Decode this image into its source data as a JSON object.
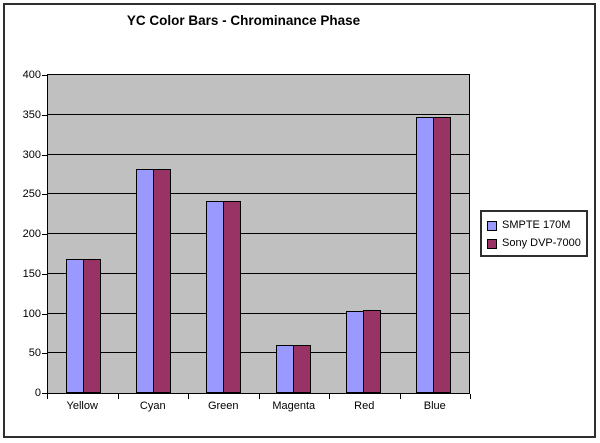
{
  "chart_data": {
    "type": "bar",
    "title": "YC Color Bars - Chrominance Phase",
    "categories": [
      "Yellow",
      "Cyan",
      "Green",
      "Magenta",
      "Red",
      "Blue"
    ],
    "series": [
      {
        "name": "SMPTE 170M",
        "color": "#9999FF",
        "values": [
          168,
          282,
          241,
          60,
          103,
          347
        ]
      },
      {
        "name": "Sony DVP-7000",
        "color": "#993366",
        "values": [
          168,
          282,
          241,
          60,
          105,
          347
        ]
      }
    ],
    "xlabel": "",
    "ylabel": "",
    "ylim": [
      0,
      400
    ],
    "yticks": [
      0,
      50,
      100,
      150,
      200,
      250,
      300,
      350,
      400
    ],
    "grid": true,
    "legend_position": "right",
    "plot_background": "#C0C0C0",
    "gridline_color": "#000000",
    "bar_border_color": "#000000",
    "axis_text_color": "#000000"
  }
}
